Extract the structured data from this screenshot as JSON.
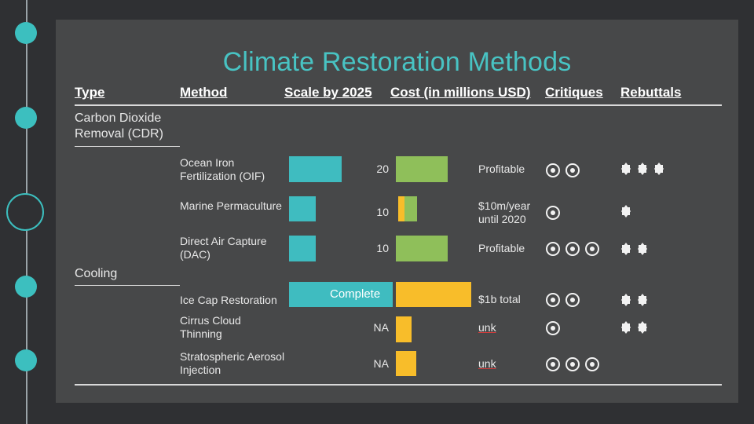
{
  "title": "Climate Restoration Methods",
  "headers": {
    "type": "Type",
    "method": "Method",
    "scale": "Scale by 2025",
    "cost": "Cost (in millions USD)",
    "critiques": "Critiques",
    "rebuttals": "Rebuttals"
  },
  "sections": {
    "cdr": "Carbon Dioxide Removal (CDR)",
    "cooling": "Cooling"
  },
  "rows": [
    {
      "method": "Ocean Iron Fertilization (OIF)",
      "scale": 20,
      "scale_label": "20",
      "cost_fraction": 1.0,
      "cost_color": "green",
      "cost_text": "Profitable",
      "critiques": 2,
      "rebuttals": 3
    },
    {
      "method": "Marine Permaculture",
      "scale": 10,
      "scale_label": "10",
      "cost_fraction": 0.2,
      "cost_color": "mixed",
      "cost_text": "$10m/year until 2020",
      "critiques": 1,
      "rebuttals": 1
    },
    {
      "method": "Direct Air Capture (DAC)",
      "scale": 10,
      "scale_label": "10",
      "cost_fraction": 1.0,
      "cost_color": "green",
      "cost_text": "Profitable",
      "critiques": 3,
      "rebuttals": 2
    },
    {
      "method": "Ice Cap Restoration",
      "scale": "Complete",
      "scale_label": "Complete",
      "cost_fraction": 1.0,
      "cost_color": "orange",
      "cost_text": "$1b total",
      "critiques": 2,
      "rebuttals": 2
    },
    {
      "method": "Cirrus Cloud Thinning",
      "scale": "NA",
      "scale_label": "NA",
      "cost_fraction": 0.28,
      "cost_color": "orange",
      "cost_text": "unk",
      "critiques": 1,
      "rebuttals": 2
    },
    {
      "method": "Stratospheric Aerosol Injection",
      "scale": "NA",
      "scale_label": "NA",
      "cost_fraction": 0.28,
      "cost_color": "orange",
      "cost_text": "unk",
      "critiques": 3,
      "rebuttals": 0
    }
  ],
  "colors": {
    "accent": "#48c3c3",
    "teal": "#3fbcc0",
    "green": "#8fbf5a",
    "orange": "#f8bd2a"
  }
}
